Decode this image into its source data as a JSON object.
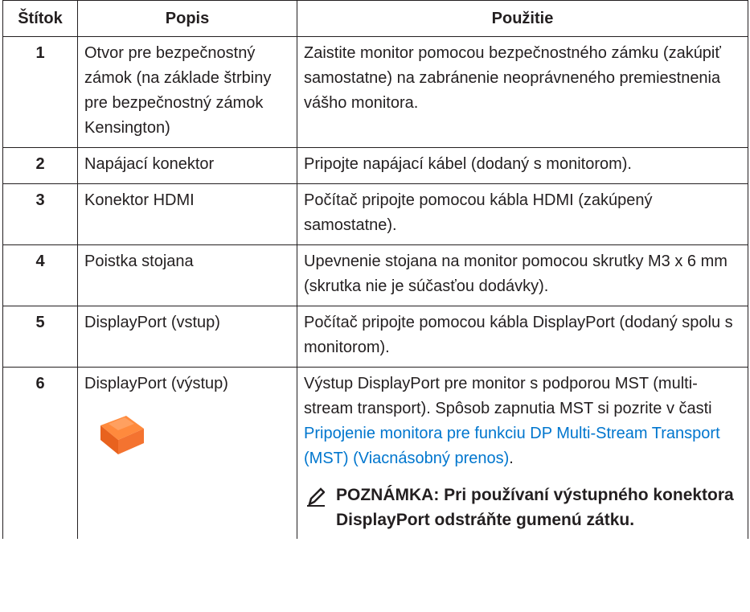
{
  "table": {
    "header": [
      "Štítok",
      "Popis",
      "Použitie"
    ],
    "rows": [
      {
        "label": "1",
        "description": "Otvor pre bezpečnostný zámok (na základe štrbiny pre bezpečnostný zámok Kensington)",
        "usage": "Zaistite monitor pomocou bezpečnostného zámku (zakúpiť samostatne) na zabránenie neoprávneného premiestnenia vášho monitora."
      },
      {
        "label": "2",
        "description": "Napájací konektor",
        "usage": "Pripojte napájací kábel (dodaný s monitorom)."
      },
      {
        "label": "3",
        "description": "Konektor HDMI",
        "usage": "Počítač pripojte pomocou kábla HDMI (zakúpený samostatne)."
      },
      {
        "label": "4",
        "description": "Poistka stojana",
        "usage": "Upevnenie stojana na monitor pomocou skrutky M3 x 6 mm (skrutka nie je súčasťou dodávky)."
      },
      {
        "label": "5",
        "description": "DisplayPort (vstup)",
        "usage": "Počítač pripojte pomocou kábla DisplayPort (dodaný spolu s monitorom)."
      },
      {
        "label": "6",
        "description": "DisplayPort (výstup)",
        "usage": "Výstup DisplayPort pre monitor s podporou MST (multi-stream transport). Spôsob zapnutia MST si pozrite v časti ",
        "link": "Pripojenie monitora pre funkciu DP Multi-Stream Transport (MST) (Viacnásobný prenos)",
        "usage_end": ".",
        "note": "POZNÁMKA: Pri používaní výstupného konektora DisplayPort odstráňte gumenú zátku."
      }
    ]
  }
}
